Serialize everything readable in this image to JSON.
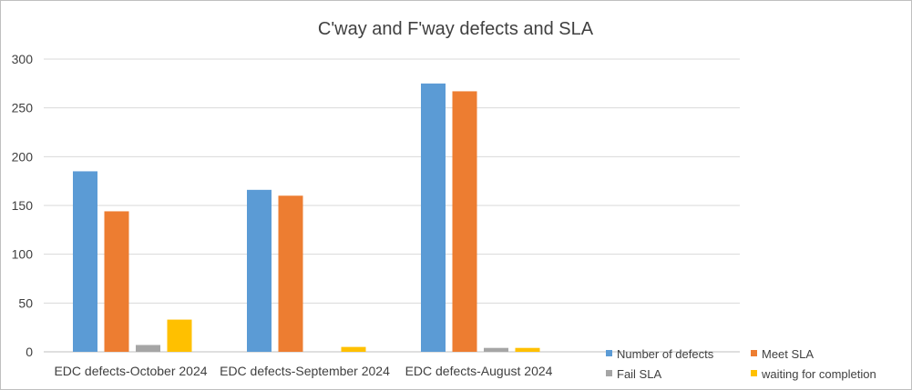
{
  "chart_data": {
    "type": "bar",
    "title": "C'way and F'way defects and SLA",
    "categories": [
      "EDC defects-October 2024",
      "EDC defects-September 2024",
      "EDC defects-August 2024"
    ],
    "series": [
      {
        "name": "Number of defects",
        "color": "#5b9bd5",
        "values": [
          185,
          166,
          275
        ]
      },
      {
        "name": "Meet SLA",
        "color": "#ed7d31",
        "values": [
          144,
          160,
          267
        ]
      },
      {
        "name": "Fail SLA",
        "color": "#a5a5a5",
        "values": [
          7,
          0,
          4
        ]
      },
      {
        "name": "waiting for completion",
        "color": "#ffc000",
        "values": [
          33,
          5,
          4
        ]
      }
    ],
    "ylim": [
      0,
      300
    ],
    "yticks": [
      "0",
      "50",
      "100",
      "150",
      "200",
      "250",
      "300"
    ],
    "grid": true,
    "legend_position": "bottom-right"
  }
}
